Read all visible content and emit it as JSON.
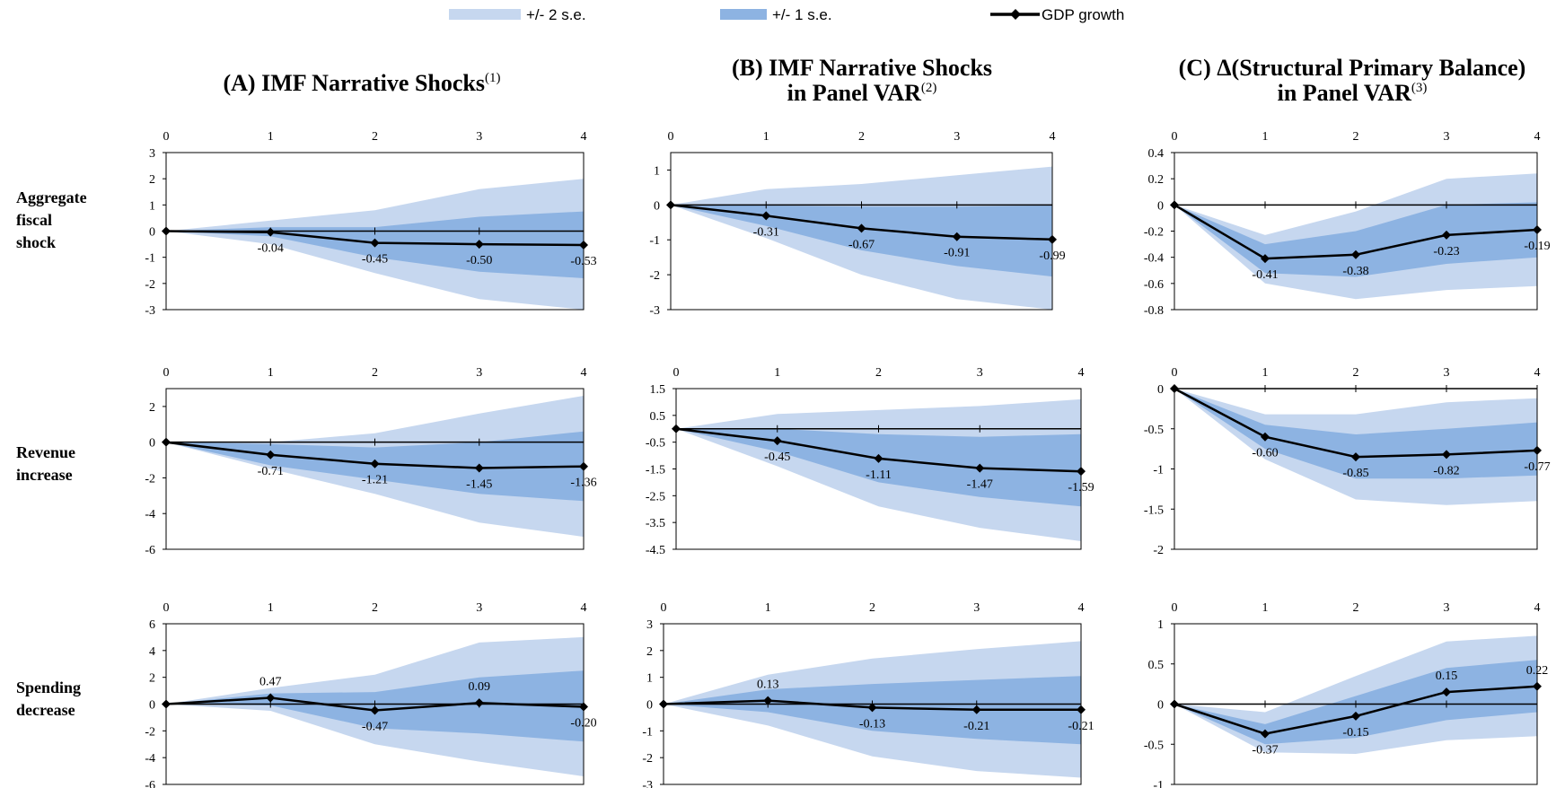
{
  "legend": {
    "band2_label": "+/- 2 s.e.",
    "band1_label": "+/- 1 s.e.",
    "line_label": "GDP growth"
  },
  "colors": {
    "band2": "#c6d7ef",
    "band1": "#8db3e2",
    "line": "#000000"
  },
  "columns": [
    {
      "title_lines": [
        "(A) IMF Narrative Shocks"
      ],
      "superscript": "(1)"
    },
    {
      "title_lines": [
        "(B) IMF Narrative Shocks",
        "in Panel VAR"
      ],
      "superscript": "(2)"
    },
    {
      "title_lines": [
        "(C) Δ(Structural Primary Balance)",
        "in Panel VAR"
      ],
      "superscript": "(3)"
    }
  ],
  "rows": [
    {
      "label_lines": [
        "Aggregate",
        "fiscal",
        "shock"
      ]
    },
    {
      "label_lines": [
        "Revenue",
        "increase"
      ]
    },
    {
      "label_lines": [
        "Spending",
        "decrease"
      ]
    }
  ],
  "chart_data": [
    {
      "type": "line",
      "panel": "A",
      "row": "Aggregate fiscal shock",
      "x": [
        0,
        1,
        2,
        3,
        4
      ],
      "ylim": [
        -3,
        3
      ],
      "yticks": [
        "3",
        "2",
        "1",
        "0",
        "-1",
        "-2",
        "-3"
      ],
      "series": [
        {
          "name": "GDP growth",
          "values": [
            0,
            -0.04,
            -0.45,
            -0.5,
            -0.53
          ]
        }
      ],
      "band1": {
        "upper": [
          0,
          0.15,
          0.15,
          0.55,
          0.75
        ],
        "lower": [
          0,
          -0.2,
          -1.0,
          -1.55,
          -1.8
        ]
      },
      "band2": {
        "upper": [
          0,
          0.4,
          0.8,
          1.6,
          2.0
        ],
        "lower": [
          0,
          -0.5,
          -1.6,
          -2.6,
          -3.0
        ]
      },
      "data_labels": [
        "-0.04",
        "-0.45",
        "-0.50",
        "-0.53"
      ]
    },
    {
      "type": "line",
      "panel": "B",
      "row": "Aggregate fiscal shock",
      "x": [
        0,
        1,
        2,
        3,
        4
      ],
      "ylim": [
        -3,
        1.5
      ],
      "yticks": [
        "1",
        "0",
        "-1",
        "-2",
        "-3"
      ],
      "series": [
        {
          "name": "GDP growth",
          "values": [
            0,
            -0.31,
            -0.67,
            -0.91,
            -0.99
          ]
        }
      ],
      "band1": {
        "upper": [
          0,
          -0.02,
          -0.05,
          -0.05,
          -0.02
        ],
        "lower": [
          0,
          -0.6,
          -1.3,
          -1.75,
          -2.05
        ]
      },
      "band2": {
        "upper": [
          0,
          0.45,
          0.6,
          0.85,
          1.1
        ],
        "lower": [
          0,
          -0.95,
          -2.0,
          -2.7,
          -3.0
        ]
      },
      "data_labels": [
        "-0.31",
        "-0.67",
        "-0.91",
        "-0.99"
      ]
    },
    {
      "type": "line",
      "panel": "C",
      "row": "Aggregate fiscal shock",
      "x": [
        0,
        1,
        2,
        3,
        4
      ],
      "ylim": [
        -0.8,
        0.4
      ],
      "yticks": [
        "0.4",
        "0.2",
        "0",
        "-0.2",
        "-0.4",
        "-0.6",
        "-0.8"
      ],
      "series": [
        {
          "name": "GDP growth",
          "values": [
            0,
            -0.41,
            -0.38,
            -0.23,
            -0.19
          ]
        }
      ],
      "band1": {
        "upper": [
          0,
          -0.3,
          -0.2,
          0.0,
          0.02
        ],
        "lower": [
          0,
          -0.52,
          -0.55,
          -0.45,
          -0.4
        ]
      },
      "band2": {
        "upper": [
          0,
          -0.23,
          -0.05,
          0.2,
          0.24
        ],
        "lower": [
          0,
          -0.6,
          -0.72,
          -0.65,
          -0.62
        ]
      },
      "data_labels": [
        "-0.41",
        "-0.38",
        "-0.23",
        "-0.19"
      ]
    },
    {
      "type": "line",
      "panel": "A",
      "row": "Revenue increase",
      "x": [
        0,
        1,
        2,
        3,
        4
      ],
      "ylim": [
        -6,
        3
      ],
      "yticks": [
        "2",
        "0",
        "-2",
        "-4",
        "-6"
      ],
      "series": [
        {
          "name": "GDP growth",
          "values": [
            0,
            -0.71,
            -1.21,
            -1.45,
            -1.36
          ]
        }
      ],
      "band1": {
        "upper": [
          0,
          -0.1,
          -0.3,
          0.0,
          0.6
        ],
        "lower": [
          0,
          -1.3,
          -2.1,
          -2.9,
          -3.3
        ]
      },
      "band2": {
        "upper": [
          0,
          0.0,
          0.5,
          1.6,
          2.6
        ],
        "lower": [
          0,
          -1.5,
          -2.9,
          -4.5,
          -5.3
        ]
      },
      "data_labels": [
        "-0.71",
        "-1.21",
        "-1.45",
        "-1.36"
      ]
    },
    {
      "type": "line",
      "panel": "B",
      "row": "Revenue increase",
      "x": [
        0,
        1,
        2,
        3,
        4
      ],
      "ylim": [
        -4.5,
        1.5
      ],
      "yticks": [
        "1.5",
        "0.5",
        "-0.5",
        "-1.5",
        "-2.5",
        "-3.5",
        "-4.5"
      ],
      "series": [
        {
          "name": "GDP growth",
          "values": [
            0,
            -0.45,
            -1.11,
            -1.47,
            -1.59
          ]
        }
      ],
      "band1": {
        "upper": [
          0,
          0.0,
          -0.2,
          -0.3,
          -0.2
        ],
        "lower": [
          0,
          -0.85,
          -2.0,
          -2.55,
          -2.9
        ]
      },
      "band2": {
        "upper": [
          0,
          0.55,
          0.7,
          0.85,
          1.1
        ],
        "lower": [
          0,
          -1.4,
          -2.9,
          -3.7,
          -4.2
        ]
      },
      "data_labels": [
        "-0.45",
        "-1.11",
        "-1.47",
        "-1.59"
      ]
    },
    {
      "type": "line",
      "panel": "C",
      "row": "Revenue increase",
      "x": [
        0,
        1,
        2,
        3,
        4
      ],
      "ylim": [
        -2,
        0
      ],
      "yticks": [
        "0",
        "-0.5",
        "-1",
        "-1.5",
        "-2"
      ],
      "series": [
        {
          "name": "GDP growth",
          "values": [
            0,
            -0.6,
            -0.85,
            -0.82,
            -0.77
          ]
        }
      ],
      "band1": {
        "upper": [
          0,
          -0.45,
          -0.57,
          -0.5,
          -0.42
        ],
        "lower": [
          0,
          -0.75,
          -1.12,
          -1.12,
          -1.08
        ]
      },
      "band2": {
        "upper": [
          0,
          -0.32,
          -0.32,
          -0.17,
          -0.12
        ],
        "lower": [
          0,
          -0.88,
          -1.38,
          -1.45,
          -1.4
        ]
      },
      "data_labels": [
        "-0.60",
        "-0.85",
        "-0.82",
        "-0.77"
      ]
    },
    {
      "type": "line",
      "panel": "A",
      "row": "Spending decrease",
      "x": [
        0,
        1,
        2,
        3,
        4
      ],
      "ylim": [
        -6,
        6
      ],
      "yticks": [
        "6",
        "4",
        "2",
        "0",
        "-2",
        "-4",
        "-6"
      ],
      "series": [
        {
          "name": "GDP growth",
          "values": [
            0,
            0.47,
            -0.47,
            0.09,
            -0.2
          ]
        }
      ],
      "band1": {
        "upper": [
          0,
          0.8,
          0.9,
          2.0,
          2.5
        ],
        "lower": [
          0,
          -0.1,
          -1.8,
          -2.2,
          -2.8
        ]
      },
      "band2": {
        "upper": [
          0,
          1.2,
          2.2,
          4.6,
          5.0
        ],
        "lower": [
          0,
          -0.5,
          -3.0,
          -4.3,
          -5.4
        ]
      },
      "data_labels": [
        "0.47",
        "-0.47",
        "0.09",
        "-0.20"
      ]
    },
    {
      "type": "line",
      "panel": "B",
      "row": "Spending decrease",
      "x": [
        0,
        1,
        2,
        3,
        4
      ],
      "ylim": [
        -3,
        3
      ],
      "yticks": [
        "3",
        "2",
        "1",
        "0",
        "-1",
        "-2",
        "-3"
      ],
      "series": [
        {
          "name": "GDP growth",
          "values": [
            0,
            0.13,
            -0.13,
            -0.21,
            -0.21
          ]
        }
      ],
      "band1": {
        "upper": [
          0,
          0.55,
          0.75,
          0.9,
          1.05
        ],
        "lower": [
          0,
          -0.3,
          -1.0,
          -1.3,
          -1.5
        ]
      },
      "band2": {
        "upper": [
          0,
          1.1,
          1.7,
          2.05,
          2.35
        ],
        "lower": [
          0,
          -0.8,
          -1.95,
          -2.5,
          -2.75
        ]
      },
      "data_labels": [
        "0.13",
        "-0.13",
        "-0.21",
        "-0.21"
      ]
    },
    {
      "type": "line",
      "panel": "C",
      "row": "Spending decrease",
      "x": [
        0,
        1,
        2,
        3,
        4
      ],
      "ylim": [
        -1,
        1
      ],
      "yticks": [
        "1",
        "0.5",
        "0",
        "-0.5",
        "-1"
      ],
      "series": [
        {
          "name": "GDP growth",
          "values": [
            0,
            -0.37,
            -0.15,
            0.15,
            0.22
          ]
        }
      ],
      "band1": {
        "upper": [
          0,
          -0.25,
          0.1,
          0.45,
          0.55
        ],
        "lower": [
          0,
          -0.5,
          -0.42,
          -0.2,
          -0.1
        ]
      },
      "band2": {
        "upper": [
          0,
          -0.1,
          0.35,
          0.78,
          0.85
        ],
        "lower": [
          0,
          -0.6,
          -0.62,
          -0.45,
          -0.4
        ]
      },
      "data_labels": [
        "-0.37",
        "-0.15",
        "0.15",
        "0.22"
      ]
    }
  ]
}
